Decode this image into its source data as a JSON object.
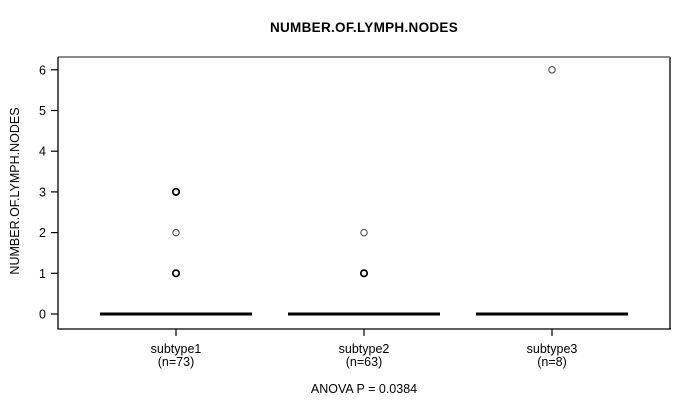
{
  "chart_data": {
    "type": "boxplot",
    "title": "NUMBER.OF.LYMPH.NODES",
    "ylabel": "NUMBER.OF.LYMPH.NODES",
    "xlabel": "",
    "ylim": [
      0,
      6
    ],
    "y_ticks": [
      0,
      1,
      2,
      3,
      4,
      5,
      6
    ],
    "grid": false,
    "annotation": "ANOVA P = 0.0384",
    "groups": [
      {
        "label": "subtype1",
        "sublabel": "(n=73)",
        "n": 73,
        "median": 0,
        "q1": 0,
        "q3": 0,
        "outliers": [
          {
            "value": 3,
            "emphasis": "bold"
          },
          {
            "value": 2,
            "emphasis": "light"
          },
          {
            "value": 1,
            "emphasis": "bold"
          }
        ]
      },
      {
        "label": "subtype2",
        "sublabel": "(n=63)",
        "n": 63,
        "median": 0,
        "q1": 0,
        "q3": 0,
        "outliers": [
          {
            "value": 2,
            "emphasis": "light"
          },
          {
            "value": 1,
            "emphasis": "bold"
          }
        ]
      },
      {
        "label": "subtype3",
        "sublabel": "(n=8)",
        "n": 8,
        "median": 0,
        "q1": 0,
        "q3": 0,
        "outliers": [
          {
            "value": 6,
            "emphasis": "light"
          }
        ]
      }
    ],
    "colors": {
      "median_bar": "#000000",
      "point_bold": "#000000",
      "point_light": "#4d4d4d",
      "axis_dark": "#000000",
      "box_top": "#8a8a8a",
      "box_right": "#5a5a5a",
      "text": "#000000",
      "background": "#ffffff"
    }
  }
}
